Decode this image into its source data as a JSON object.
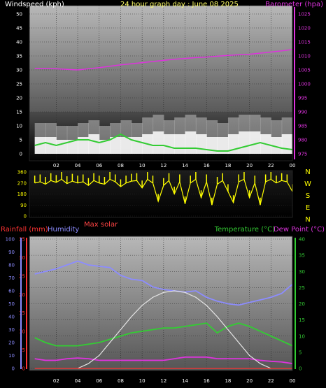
{
  "header": {
    "windspeed_label": "Windspeed (kph)",
    "title": "24 hour graph day : June 08 2025",
    "barometer_label": "Barometer (hpa)"
  },
  "middle": {
    "max_solar_label": "Max solar",
    "compass": [
      "N",
      "W",
      "S",
      "E",
      "N"
    ]
  },
  "bottom_header": {
    "rain_label": "Rainfall (mm)",
    "humidity_label": "Humidity",
    "temperature_label": "Temperature (°C)",
    "dewpoint_label": "Dew Point (°C)"
  },
  "colors": {
    "wind": "#ffffff",
    "wind_avg": "#33cc33",
    "barometer": "#dd33dd",
    "direction": "#ffff00",
    "rain": "#ff3333",
    "humidity": "#8c8cff",
    "temperature": "#33cc33",
    "dewpoint": "#dd33dd",
    "solar": "#e6e6e6",
    "title": "#ffff66"
  },
  "chart_data": [
    {
      "type": "line",
      "x_ticks": [
        "02",
        "04",
        "06",
        "08",
        "10",
        "12",
        "14",
        "16",
        "18",
        "20",
        "22",
        "00"
      ],
      "y_left_ticks": [
        "0",
        "5",
        "10",
        "15",
        "20",
        "25",
        "30",
        "35",
        "40",
        "45",
        "50"
      ],
      "y_left_range": [
        0,
        50
      ],
      "y_right_ticks": [
        "975",
        "980",
        "985",
        "990",
        "995",
        "1000",
        "1005",
        "1010",
        "1015",
        "1020",
        "1025"
      ],
      "y_right_range": [
        975,
        1025
      ],
      "series": [
        {
          "name": "Windspeed (kph)",
          "axis": "left",
          "x": [
            0,
            1,
            2,
            3,
            4,
            5,
            6,
            7,
            8,
            9,
            10,
            11,
            12,
            13,
            14,
            15,
            16,
            17,
            18,
            19,
            20,
            21,
            22,
            23,
            24
          ],
          "gust": [
            11,
            11,
            10,
            10,
            11,
            12,
            10,
            11,
            12,
            11,
            13,
            14,
            12,
            13,
            14,
            13,
            12,
            11,
            13,
            14,
            14,
            13,
            12,
            13,
            11
          ],
          "values": [
            6,
            6,
            5,
            5,
            6,
            7,
            5,
            6,
            6,
            6,
            7,
            8,
            7,
            7,
            8,
            7,
            6,
            6,
            7,
            8,
            8,
            7,
            6,
            7,
            6
          ]
        },
        {
          "name": "Windspeed (kph)",
          "axis": "left",
          "role": "average",
          "x": [
            0,
            1,
            2,
            3,
            4,
            5,
            6,
            7,
            8,
            9,
            10,
            11,
            12,
            13,
            14,
            15,
            16,
            17,
            18,
            19,
            20,
            21,
            22,
            23,
            24
          ],
          "values": [
            3,
            4,
            3,
            4,
            5,
            5,
            4,
            5,
            7,
            5,
            4,
            3,
            3,
            2,
            2,
            2,
            1.5,
            1,
            1,
            2,
            3,
            4,
            3,
            2,
            1.5
          ]
        },
        {
          "name": "Barometer (hpa)",
          "axis": "right",
          "x": [
            0,
            1,
            2,
            3,
            4,
            5,
            6,
            7,
            8,
            9,
            10,
            11,
            12,
            13,
            14,
            15,
            16,
            17,
            18,
            19,
            20,
            21,
            22,
            23,
            24
          ],
          "values": [
            1005.5,
            1005.5,
            1005.4,
            1005.2,
            1005,
            1005.4,
            1005.8,
            1006.3,
            1006.8,
            1007.2,
            1007.6,
            1008,
            1008.4,
            1008.8,
            1009.1,
            1009.4,
            1009.6,
            1009.9,
            1010.2,
            1010.4,
            1010.6,
            1011,
            1011.4,
            1011.8,
            1012.3
          ]
        }
      ]
    },
    {
      "type": "scatter",
      "y_ticks": [
        "0",
        "90",
        "180",
        "270",
        "360"
      ],
      "y_range": [
        0,
        360
      ],
      "series": [
        {
          "name": "Wind direction",
          "x": [
            0,
            0.5,
            1,
            1.5,
            2,
            2.5,
            3,
            3.5,
            4,
            4.5,
            5,
            5.5,
            6,
            6.5,
            7,
            7.5,
            8,
            8.5,
            9,
            9.5,
            10,
            10.5,
            11,
            11.5,
            12,
            12.5,
            13,
            13.5,
            14,
            14.5,
            15,
            15.5,
            16,
            16.5,
            17,
            17.5,
            18,
            18.5,
            19,
            19.5,
            20,
            20.5,
            21,
            21.5,
            22,
            22.5,
            23,
            23.5,
            24
          ],
          "values": [
            270,
            280,
            260,
            290,
            275,
            300,
            265,
            285,
            270,
            280,
            250,
            290,
            270,
            260,
            300,
            280,
            240,
            270,
            285,
            290,
            230,
            300,
            270,
            120,
            250,
            290,
            180,
            280,
            100,
            270,
            300,
            150,
            280,
            90,
            260,
            290,
            200,
            110,
            280,
            300,
            150,
            270,
            90,
            280,
            300,
            270,
            290,
            280,
            200
          ]
        }
      ]
    },
    {
      "type": "line",
      "y_rain_ticks": [
        "0",
        "5",
        "10",
        "15",
        "20",
        "25",
        "30",
        "35"
      ],
      "y_rain_range": [
        0,
        35
      ],
      "y_humidity_ticks": [
        "0",
        "10",
        "20",
        "30",
        "40",
        "50",
        "60",
        "70",
        "80",
        "90",
        "100"
      ],
      "y_humidity_range": [
        0,
        100
      ],
      "y_temp_ticks": [
        "0",
        "5",
        "10",
        "15",
        "20",
        "25",
        "30",
        "35",
        "40"
      ],
      "y_temp_range": [
        0,
        40
      ],
      "series": [
        {
          "name": "Humidity",
          "axis": "humidity",
          "x": [
            0,
            1,
            2,
            3,
            4,
            5,
            6,
            7,
            8,
            9,
            10,
            11,
            12,
            13,
            14,
            15,
            16,
            17,
            18,
            19,
            20,
            21,
            22,
            23,
            24
          ],
          "values": [
            73,
            75,
            77,
            80,
            83,
            80,
            79,
            78,
            72,
            69,
            68,
            63,
            61,
            60,
            59,
            60,
            55,
            52,
            50,
            49,
            51,
            53,
            55,
            58,
            65
          ]
        },
        {
          "name": "Temperature (°C)",
          "axis": "temp",
          "x": [
            0,
            1,
            2,
            3,
            4,
            5,
            6,
            7,
            8,
            9,
            10,
            11,
            12,
            13,
            14,
            15,
            16,
            17,
            18,
            19,
            20,
            21,
            22,
            23,
            24
          ],
          "values": [
            9.5,
            8,
            7,
            7,
            7,
            7.5,
            8,
            9,
            10,
            11,
            11.5,
            12,
            12.5,
            12.5,
            13,
            13.5,
            14,
            11,
            13,
            14,
            13,
            11.5,
            10,
            8.5,
            7
          ]
        },
        {
          "name": "Dew Point (°C)",
          "axis": "temp",
          "x": [
            0,
            1,
            2,
            3,
            4,
            5,
            6,
            7,
            8,
            9,
            10,
            11,
            12,
            13,
            14,
            15,
            16,
            17,
            18,
            19,
            20,
            21,
            22,
            23,
            24
          ],
          "values": [
            3,
            2.5,
            2.5,
            3,
            3.2,
            3,
            2.5,
            2.5,
            2.5,
            2.5,
            2.5,
            2.5,
            2.5,
            3,
            3.5,
            3.5,
            3.5,
            3,
            3,
            3,
            3,
            2.5,
            2.2,
            2,
            1.5
          ]
        },
        {
          "name": "Max solar",
          "axis": "temp",
          "x": [
            4,
            5,
            6,
            7,
            8,
            9,
            10,
            11,
            12,
            13,
            14,
            15,
            16,
            17,
            18,
            19,
            20,
            21,
            22
          ],
          "values": [
            0,
            1.5,
            4,
            8,
            12,
            16,
            19.5,
            22,
            23.5,
            24,
            23.5,
            22,
            19.5,
            16,
            12,
            8,
            4,
            1.5,
            0
          ]
        },
        {
          "name": "Rainfall (mm)",
          "axis": "rain",
          "x": [
            0,
            24
          ],
          "values": [
            0,
            0
          ]
        }
      ]
    }
  ]
}
